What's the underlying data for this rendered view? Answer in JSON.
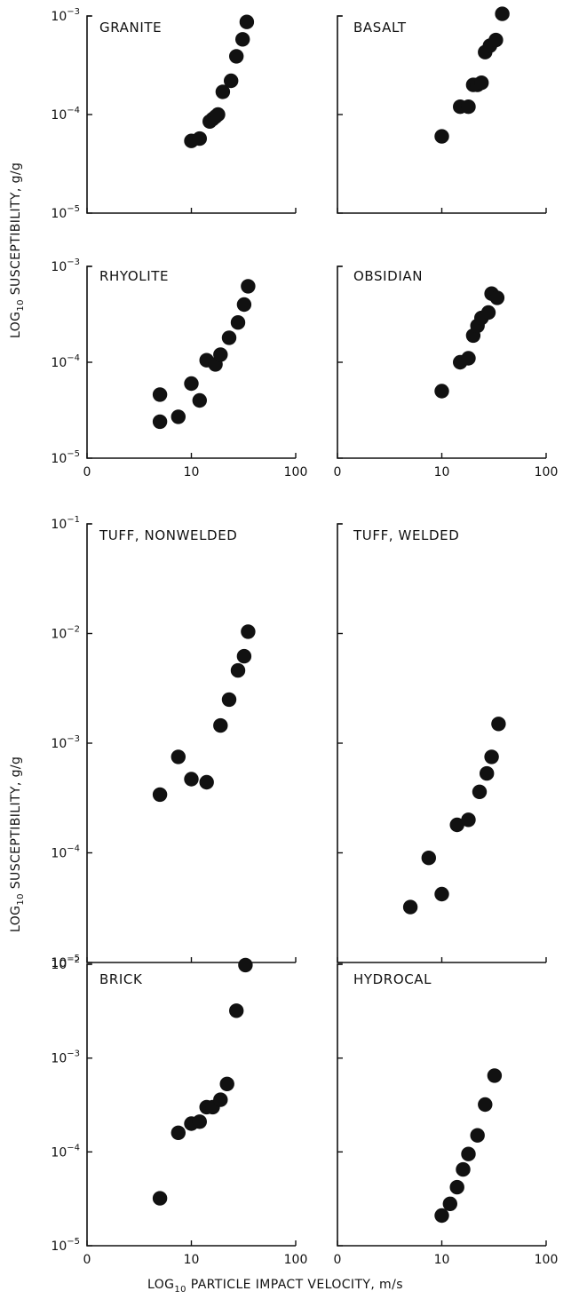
{
  "figure": {
    "ylabel_top": "LOG10 SUSCEPTIBILITY, g/g",
    "ylabel_bottom": "LOG10 SUSCEPTIBILITY, g/g",
    "xlabel": "LOG10 PARTICLE IMPACT VELOCITY, m/s",
    "xtick_labels": [
      "0",
      "10",
      "100"
    ]
  },
  "chart_data": [
    {
      "type": "scatter",
      "title": "GRANITE",
      "xscale": "log",
      "yscale": "log",
      "xlim": [
        1,
        100
      ],
      "ylim": [
        1e-05,
        0.001
      ],
      "grid": false,
      "x": [
        10,
        12,
        15,
        16,
        17,
        18,
        20,
        24,
        27,
        31,
        34
      ],
      "y": [
        5.4e-05,
        5.7e-05,
        8.5e-05,
        9e-05,
        9.5e-05,
        0.0001,
        0.00017,
        0.00022,
        0.00039,
        0.00058,
        0.00087
      ]
    },
    {
      "type": "scatter",
      "title": "BASALT",
      "xscale": "log",
      "yscale": "log",
      "xlim": [
        1,
        100
      ],
      "ylim": [
        1e-05,
        0.001
      ],
      "grid": false,
      "x": [
        10,
        15,
        18,
        20,
        22,
        24,
        26,
        29,
        33,
        38
      ],
      "y": [
        6e-05,
        0.00012,
        0.00012,
        0.0002,
        0.0002,
        0.00021,
        0.00043,
        0.0005,
        0.00057,
        0.00105
      ]
    },
    {
      "type": "scatter",
      "title": "RHYOLITE",
      "xscale": "log",
      "yscale": "log",
      "xlim": [
        1,
        100
      ],
      "ylim": [
        1e-05,
        0.001
      ],
      "grid": false,
      "x": [
        5,
        5,
        7.5,
        10,
        12,
        14,
        17,
        19,
        23,
        28,
        32,
        35
      ],
      "y": [
        4.6e-05,
        2.4e-05,
        2.7e-05,
        6e-05,
        4e-05,
        0.000105,
        9.5e-05,
        0.00012,
        0.00018,
        0.00026,
        0.0004,
        0.00062
      ]
    },
    {
      "type": "scatter",
      "title": "OBSIDIAN",
      "xscale": "log",
      "yscale": "log",
      "xlim": [
        1,
        100
      ],
      "ylim": [
        1e-05,
        0.001
      ],
      "grid": false,
      "x": [
        10,
        15,
        18,
        20,
        22,
        24,
        28,
        30,
        34
      ],
      "y": [
        5e-05,
        0.0001,
        0.00011,
        0.00019,
        0.00024,
        0.00029,
        0.00033,
        0.00052,
        0.00047
      ]
    },
    {
      "type": "scatter",
      "title": "TUFF, NONWELDED",
      "xscale": "log",
      "yscale": "log",
      "xlim": [
        1,
        100
      ],
      "ylim": [
        1e-05,
        0.1
      ],
      "grid": false,
      "x": [
        5,
        7.5,
        10,
        14,
        19,
        23,
        28,
        32,
        35
      ],
      "y": [
        0.00034,
        0.00075,
        0.00047,
        0.00044,
        0.00145,
        0.0025,
        0.0046,
        0.0062,
        0.0104
      ]
    },
    {
      "type": "scatter",
      "title": "TUFF, WELDED",
      "xscale": "log",
      "yscale": "log",
      "xlim": [
        1,
        100
      ],
      "ylim": [
        1e-05,
        0.1
      ],
      "grid": false,
      "x": [
        5,
        7.5,
        10,
        14,
        18,
        23,
        27,
        30,
        35
      ],
      "y": [
        3.2e-05,
        9e-05,
        4.2e-05,
        0.00018,
        0.0002,
        0.00036,
        0.00053,
        0.00075,
        0.0015
      ]
    },
    {
      "type": "scatter",
      "title": "BRICK",
      "xscale": "log",
      "yscale": "log",
      "xlim": [
        1,
        100
      ],
      "ylim": [
        1e-05,
        0.01
      ],
      "grid": false,
      "x": [
        5,
        7.5,
        10,
        12,
        14,
        16,
        19,
        22,
        27,
        33
      ],
      "y": [
        3.2e-05,
        0.00016,
        0.0002,
        0.00021,
        0.0003,
        0.0003,
        0.00036,
        0.00053,
        0.0032,
        0.0098
      ]
    },
    {
      "type": "scatter",
      "title": "HYDROCAL",
      "xscale": "log",
      "yscale": "log",
      "xlim": [
        1,
        100
      ],
      "ylim": [
        1e-05,
        0.01
      ],
      "grid": false,
      "x": [
        10,
        12,
        14,
        16,
        18,
        22,
        26,
        32
      ],
      "y": [
        2.1e-05,
        2.8e-05,
        4.2e-05,
        6.5e-05,
        9.5e-05,
        0.00015,
        0.00032,
        0.00065
      ]
    }
  ]
}
